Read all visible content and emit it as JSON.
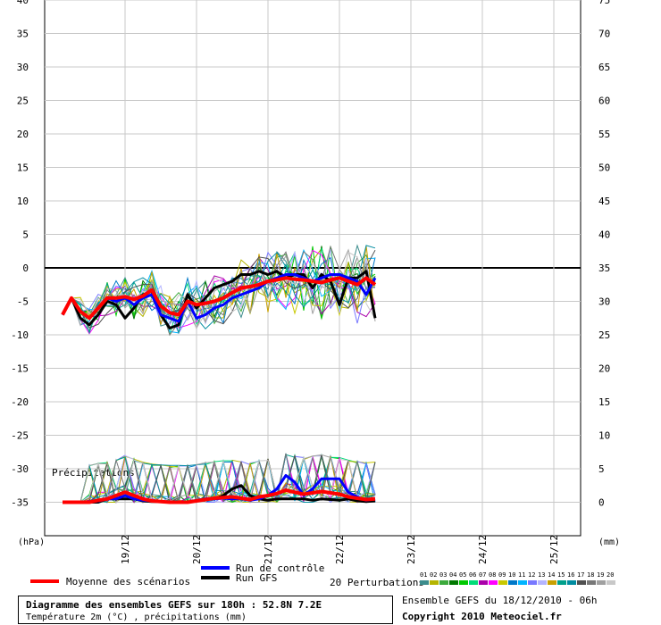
{
  "chart_data": {
    "type": "line",
    "title": "Diagramme des ensembles GEFS sur 180h : 52.8N 7.2E",
    "subtitle": "Température 2m (°C) , précipitations (mm)",
    "left_axis": {
      "unit_label": "(hPa)",
      "ticks": [
        40,
        35,
        30,
        25,
        20,
        15,
        10,
        5,
        0,
        -5,
        -10,
        -15,
        -20,
        -25,
        -30,
        -35
      ],
      "range": [
        -40,
        40
      ]
    },
    "right_axis": {
      "unit_label": "(mm)",
      "ticks": [
        75,
        70,
        65,
        60,
        55,
        50,
        45,
        40,
        35,
        30,
        25,
        20,
        15,
        10,
        5,
        0
      ],
      "range": [
        -5,
        75
      ]
    },
    "x_ticks": [
      "19/12",
      "20/12",
      "21/12",
      "22/12",
      "23/12",
      "24/12",
      "25/12"
    ],
    "x_range_steps": [
      0,
      60
    ],
    "grid": true,
    "precip_label": "Précipitations",
    "legend": {
      "mean": "Moyenne des scénarios",
      "control": "Run de contrôle",
      "gfs": "Run GFS",
      "perturbations": "20 Perturbations",
      "perturbation_numbers": [
        "01",
        "02",
        "03",
        "04",
        "05",
        "06",
        "07",
        "08",
        "09",
        "10",
        "11",
        "12",
        "13",
        "14",
        "15",
        "16",
        "17",
        "18",
        "19",
        "20"
      ],
      "perturbation_colors": [
        "#3c8c8c",
        "#b4b400",
        "#3caa3c",
        "#007800",
        "#00c800",
        "#00dc78",
        "#aa00aa",
        "#ff00ff",
        "#c8c800",
        "#0078c8",
        "#00b4ff",
        "#7878ff",
        "#b4b4ff",
        "#c8a000",
        "#00a08c",
        "#008ca0",
        "#505050",
        "#787878",
        "#a0a0a0",
        "#c8c8c8"
      ]
    },
    "series": [
      {
        "name": "Moyenne des scénarios",
        "color": "#ff0000",
        "temp": [
          -7,
          -4.5,
          -6.5,
          -7.5,
          -6,
          -4.5,
          -4.5,
          -4.3,
          -4.7,
          -4.2,
          -3.3,
          -5.7,
          -6.7,
          -7,
          -5,
          -5.5,
          -5.3,
          -5,
          -4.5,
          -3.7,
          -3,
          -2.8,
          -2.5,
          -2,
          -1.8,
          -1.5,
          -1.7,
          -1.8,
          -2,
          -2.2,
          -1.8,
          -1.5,
          -2,
          -2.5,
          -1.5,
          -2.5
        ],
        "precip": [
          0,
          0,
          0,
          0,
          0.3,
          0.5,
          1,
          1.5,
          1,
          0.5,
          0.2,
          0.1,
          0,
          0,
          0,
          0.2,
          0.4,
          0.6,
          0.7,
          0.8,
          0.6,
          0.4,
          0.8,
          1,
          1.3,
          1.8,
          1.5,
          1.2,
          1.4,
          1.6,
          1.4,
          1.2,
          0.8,
          0.6,
          0.4,
          0.5
        ]
      },
      {
        "name": "Run de contrôle",
        "color": "#0000ff",
        "temp": [
          -7,
          -4.5,
          -6.5,
          -7.5,
          -6,
          -4.5,
          -5,
          -4.5,
          -5.5,
          -4.5,
          -4,
          -7,
          -7.5,
          -8,
          -5,
          -7.5,
          -7,
          -6,
          -5.5,
          -4.5,
          -4,
          -3.5,
          -3,
          -2,
          -1.5,
          -1,
          -1,
          -1.5,
          -2,
          -1.5,
          -1,
          -1,
          -1.5,
          -2,
          -4,
          -1.5
        ],
        "precip": [
          0,
          0,
          0,
          0,
          0.2,
          0.5,
          0.5,
          1,
          0.5,
          0.3,
          0.2,
          0.1,
          0,
          0,
          0,
          0.3,
          0.5,
          0.5,
          0.6,
          0.5,
          0.5,
          0.3,
          0.5,
          1,
          2,
          4,
          3,
          1,
          2,
          3.5,
          3.5,
          3.5,
          1.5,
          0.8,
          0.3,
          0.5
        ]
      },
      {
        "name": "Run GFS",
        "color": "#000000",
        "temp": [
          -7,
          -4.5,
          -7.5,
          -8.5,
          -7,
          -5,
          -5.5,
          -7.5,
          -6,
          -4,
          -3.5,
          -7,
          -9,
          -8.5,
          -4,
          -6,
          -4.5,
          -3,
          -2.5,
          -2,
          -1,
          -1,
          -0.5,
          -1,
          -0.5,
          -1.5,
          -1,
          -1,
          -3,
          -1,
          -2,
          -5.5,
          -1.5,
          -1.5,
          -0.5,
          -7.5
        ],
        "precip": [
          0,
          0,
          0,
          0,
          0,
          0.5,
          0.5,
          0.5,
          0.5,
          0.2,
          0.1,
          0.1,
          0,
          0,
          0,
          0.2,
          0.5,
          0.5,
          1,
          2,
          2.5,
          1,
          0.5,
          0.3,
          0.5,
          0.5,
          0.5,
          0.5,
          0.3,
          0.5,
          0.4,
          0.3,
          0.5,
          0.2,
          0.1,
          0.2
        ]
      }
    ]
  },
  "footer": {
    "title": "Diagramme des ensembles GEFS sur 180h : 52.8N 7.2E",
    "subtitle": "Température 2m (°C) , précipitations (mm)",
    "run_info": "Ensemble GEFS du 18/12/2010 - 06h",
    "copyright": "Copyright 2010 Meteociel.fr"
  }
}
